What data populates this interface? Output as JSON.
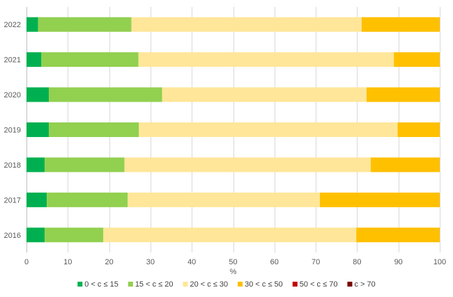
{
  "chart_data": {
    "type": "bar",
    "orientation": "horizontal",
    "stacked": true,
    "categories": [
      "2022",
      "2021",
      "2020",
      "2019",
      "2018",
      "2017",
      "2016"
    ],
    "series": [
      {
        "name": "0 < c ≤ 15",
        "color": "#00b050",
        "values": [
          2.8,
          3.6,
          5.4,
          5.4,
          4.4,
          4.9,
          4.4
        ]
      },
      {
        "name": "15 < c ≤ 20",
        "color": "#92d050",
        "values": [
          22.6,
          23.5,
          27.4,
          21.8,
          19.3,
          19.6,
          14.2
        ]
      },
      {
        "name": "20 < c ≤ 30",
        "color": "#ffe699",
        "values": [
          55.7,
          61.8,
          49.5,
          62.6,
          59.6,
          46.5,
          61.2
        ]
      },
      {
        "name": "30 < c ≤ 50",
        "color": "#ffc000",
        "values": [
          18.9,
          11.1,
          17.7,
          10.2,
          16.7,
          29.0,
          20.2
        ]
      },
      {
        "name": "50 < c ≤ 70",
        "color": "#c00000",
        "values": [
          0,
          0,
          0,
          0,
          0,
          0,
          0
        ]
      },
      {
        "name": "c > 70",
        "color": "#7b0000",
        "values": [
          0,
          0,
          0,
          0,
          0,
          0,
          0
        ]
      }
    ],
    "xlabel": "%",
    "ylabel": "",
    "xlim": [
      0,
      100
    ],
    "xticks": [
      0,
      10,
      20,
      30,
      40,
      50,
      60,
      70,
      80,
      90,
      100
    ],
    "grid": true,
    "legend": "bottom"
  }
}
